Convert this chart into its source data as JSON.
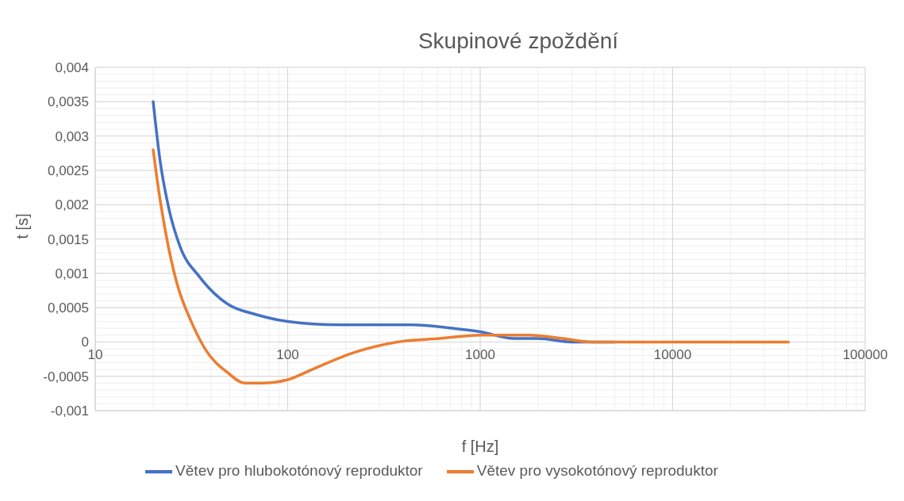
{
  "chart_data": {
    "type": "line",
    "title": "Skupinové zpoždění",
    "xlabel": "f [Hz]",
    "ylabel": "t [s]",
    "log": "x",
    "grid": true,
    "legend": "bottom",
    "marker": "none",
    "line_style": "solid",
    "xlim": [
      10,
      100000
    ],
    "xticks": [
      10,
      {
        "value": 20,
        "label": null
      },
      {
        "value": 30,
        "label": null
      },
      {
        "value": 40,
        "label": null
      },
      {
        "value": 50,
        "label": null
      },
      {
        "value": 60,
        "label": null
      },
      {
        "value": 70,
        "label": null
      },
      {
        "value": 80,
        "label": null
      },
      {
        "value": 90,
        "label": null
      },
      100,
      {
        "value": 200,
        "label": null
      },
      {
        "value": 300,
        "label": null
      },
      {
        "value": 400,
        "label": null
      },
      {
        "value": 500,
        "label": null
      },
      {
        "value": 600,
        "label": null
      },
      {
        "value": 700,
        "label": null
      },
      {
        "value": 800,
        "label": null
      },
      {
        "value": 900,
        "label": null
      },
      1000,
      {
        "value": 2000,
        "label": null
      },
      {
        "value": 3000,
        "label": null
      },
      {
        "value": 4000,
        "label": null
      },
      {
        "value": 5000,
        "label": null
      },
      {
        "value": 6000,
        "label": null
      },
      {
        "value": 7000,
        "label": null
      },
      {
        "value": 8000,
        "label": null
      },
      {
        "value": 9000,
        "label": null
      },
      10000,
      {
        "value": 20000,
        "label": null
      },
      {
        "value": 30000,
        "label": null
      },
      {
        "value": 40000,
        "label": null
      },
      {
        "value": 50000,
        "label": null
      },
      {
        "value": 60000,
        "label": null
      },
      {
        "value": 70000,
        "label": null
      },
      {
        "value": 80000,
        "label": null
      },
      {
        "value": 90000,
        "label": null
      },
      100000
    ],
    "ylim": [
      -0.001,
      0.004
    ],
    "yticks": [
      {
        "value": -0.001,
        "label": "-0,001"
      },
      {
        "value": -0.0009,
        "label": null
      },
      {
        "value": -0.0008,
        "label": null
      },
      {
        "value": -0.0007,
        "label": null
      },
      {
        "value": -0.0006,
        "label": null
      },
      {
        "value": -0.0005,
        "label": "-0,0005"
      },
      {
        "value": -0.0004,
        "label": null
      },
      {
        "value": -0.0003,
        "label": null
      },
      {
        "value": -0.0002,
        "label": null
      },
      {
        "value": -0.0001,
        "label": null
      },
      0,
      {
        "value": 0.0001,
        "label": null
      },
      {
        "value": 0.0002,
        "label": null
      },
      {
        "value": 0.0003,
        "label": null
      },
      {
        "value": 0.0004,
        "label": null
      },
      {
        "value": 0.0005,
        "label": "0,0005"
      },
      {
        "value": 0.0006,
        "label": null
      },
      {
        "value": 0.0007,
        "label": null
      },
      {
        "value": 0.0008,
        "label": null
      },
      {
        "value": 0.0009,
        "label": null
      },
      {
        "value": 0.001,
        "label": "0,001"
      },
      {
        "value": 0.0011,
        "label": null
      },
      {
        "value": 0.0012,
        "label": null
      },
      {
        "value": 0.0013,
        "label": null
      },
      {
        "value": 0.0014,
        "label": null
      },
      {
        "value": 0.0015,
        "label": "0,0015"
      },
      {
        "value": 0.0016,
        "label": null
      },
      {
        "value": 0.0017,
        "label": null
      },
      {
        "value": 0.0018,
        "label": null
      },
      {
        "value": 0.0019,
        "label": null
      },
      {
        "value": 0.002,
        "label": "0,002"
      },
      {
        "value": 0.0021,
        "label": null
      },
      {
        "value": 0.0022,
        "label": null
      },
      {
        "value": 0.0023,
        "label": null
      },
      {
        "value": 0.0024,
        "label": null
      },
      {
        "value": 0.0025,
        "label": "0,0025"
      },
      {
        "value": 0.0026,
        "label": null
      },
      {
        "value": 0.0027,
        "label": null
      },
      {
        "value": 0.0028,
        "label": null
      },
      {
        "value": 0.0029,
        "label": null
      },
      {
        "value": 0.003,
        "label": "0,003"
      },
      {
        "value": 0.0031,
        "label": null
      },
      {
        "value": 0.0032,
        "label": null
      },
      {
        "value": 0.0033,
        "label": null
      },
      {
        "value": 0.0034,
        "label": null
      },
      {
        "value": 0.0035,
        "label": "0,0035"
      },
      {
        "value": 0.0036,
        "label": null
      },
      {
        "value": 0.0037,
        "label": null
      },
      {
        "value": 0.0038,
        "label": null
      },
      {
        "value": 0.0039,
        "label": null
      },
      {
        "value": 0.004,
        "label": "0,004"
      }
    ],
    "series": [
      {
        "name": "Větev pro hlubokotónový reproduktor",
        "color": "#4472c4",
        "x": [
          20,
          21.7,
          24.1,
          27.5,
          34.8,
          48.9,
          68.4,
          100,
          188,
          438,
          720,
          1000,
          1500,
          2000,
          3000,
          5000
        ],
        "values": [
          0.0035,
          0.00265,
          0.00195,
          0.0014,
          0.00095,
          0.00055,
          0.0004,
          0.0003,
          0.00025,
          0.00025,
          0.0002,
          0.00015,
          5e-05,
          5e-05,
          0,
          0
        ]
      },
      {
        "name": "Větev pro vysokotónový reproduktor",
        "color": "#ed7d31",
        "x": [
          20,
          21,
          23.2,
          26.6,
          31.5,
          37.2,
          48.9,
          59.8,
          73.3,
          100,
          134,
          223,
          370,
          614,
          1000,
          1250,
          1800,
          2700,
          3800,
          5000,
          10000,
          20000,
          40000
        ],
        "values": [
          0.0028,
          0.00235,
          0.0016,
          0.00085,
          0.0003,
          -0.0001,
          -0.00045,
          -0.0006,
          -0.0006,
          -0.00055,
          -0.0004,
          -0.00015,
          0,
          5e-05,
          0.0001,
          0.0001,
          0.0001,
          5e-05,
          0,
          0,
          0,
          0,
          0
        ]
      }
    ]
  }
}
